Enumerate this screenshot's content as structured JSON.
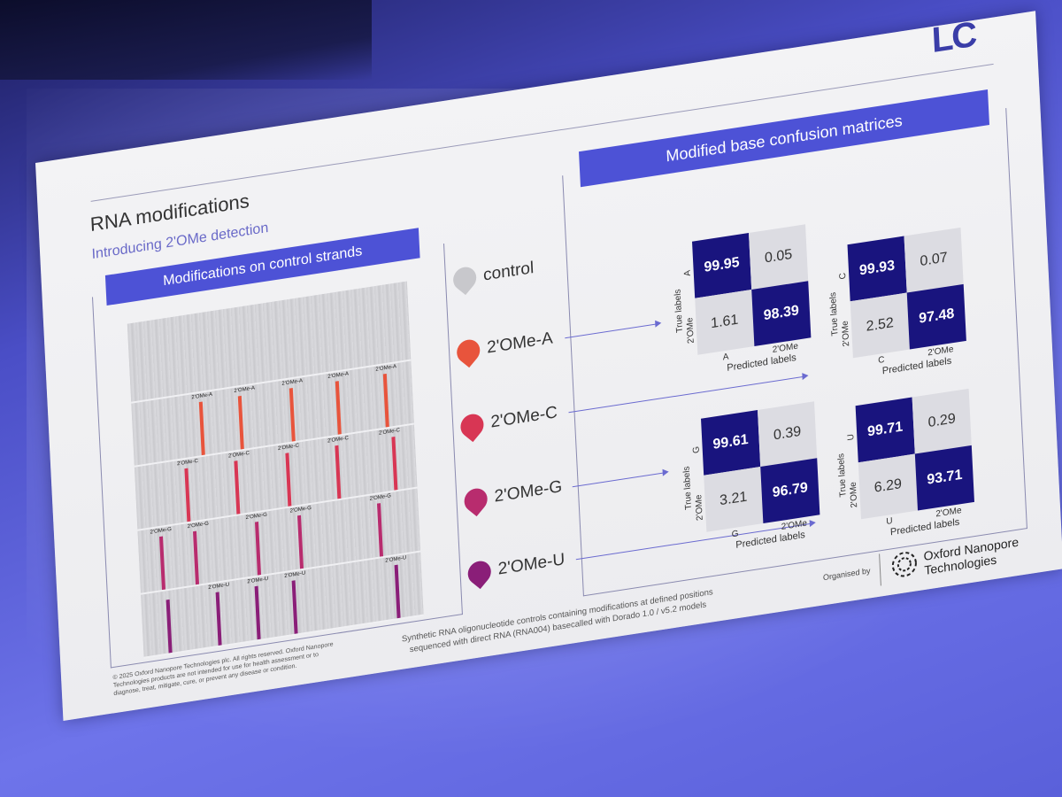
{
  "slide": {
    "title": "RNA modifications",
    "subtitle": "Introducing 2'OMe detection",
    "event_logo": "LC",
    "event_logo_small": "",
    "left_panel_title": "Modifications on control strands",
    "right_panel_title": "Modified base confusion matrices",
    "modifications": [
      {
        "label": "control",
        "color": "#c8c8cc"
      },
      {
        "label": "2'OMe-A",
        "color": "#e8543c"
      },
      {
        "label": "2'OMe-C",
        "color": "#d83654"
      },
      {
        "label": "2'OMe-G",
        "color": "#b82c6e"
      },
      {
        "label": "2'OMe-U",
        "color": "#8a1e78"
      }
    ],
    "strip_labels": {
      "A": "2'OMe-A",
      "C": "2'OMe-C",
      "G": "2'OMe-G",
      "U": "2'OMe-U"
    },
    "matrices": {
      "A": {
        "base": "A",
        "mod": "2'OMe",
        "tl": "99.95",
        "tr": "0.05",
        "bl": "1.61",
        "br": "98.39"
      },
      "C": {
        "base": "C",
        "mod": "2'OMe",
        "tl": "99.93",
        "tr": "0.07",
        "bl": "2.52",
        "br": "97.48"
      },
      "G": {
        "base": "G",
        "mod": "2'OMe",
        "tl": "99.61",
        "tr": "0.39",
        "bl": "3.21",
        "br": "96.79"
      },
      "U": {
        "base": "U",
        "mod": "2'OMe",
        "tl": "99.71",
        "tr": "0.29",
        "bl": "6.29",
        "br": "93.71"
      }
    },
    "axis": {
      "true_labels": "True labels",
      "predicted_labels": "Predicted labels"
    },
    "footer": {
      "copyright": "© 2025 Oxford Nanopore Technologies plc. All rights reserved. Oxford Nanopore Technologies products are not intended for use for health assessment or to diagnose, treat, mitigate, cure, or prevent any disease or condition.",
      "method_line1": "Synthetic RNA oligonucleotide controls containing modifications at defined positions",
      "method_line2": "sequenced with direct RNA (RNA004) basecalled with Dorado 1.0 / v5.2 models",
      "organised_by": "Organised by",
      "org_name_line1": "Oxford Nanopore",
      "org_name_line2": "Technologies"
    }
  }
}
